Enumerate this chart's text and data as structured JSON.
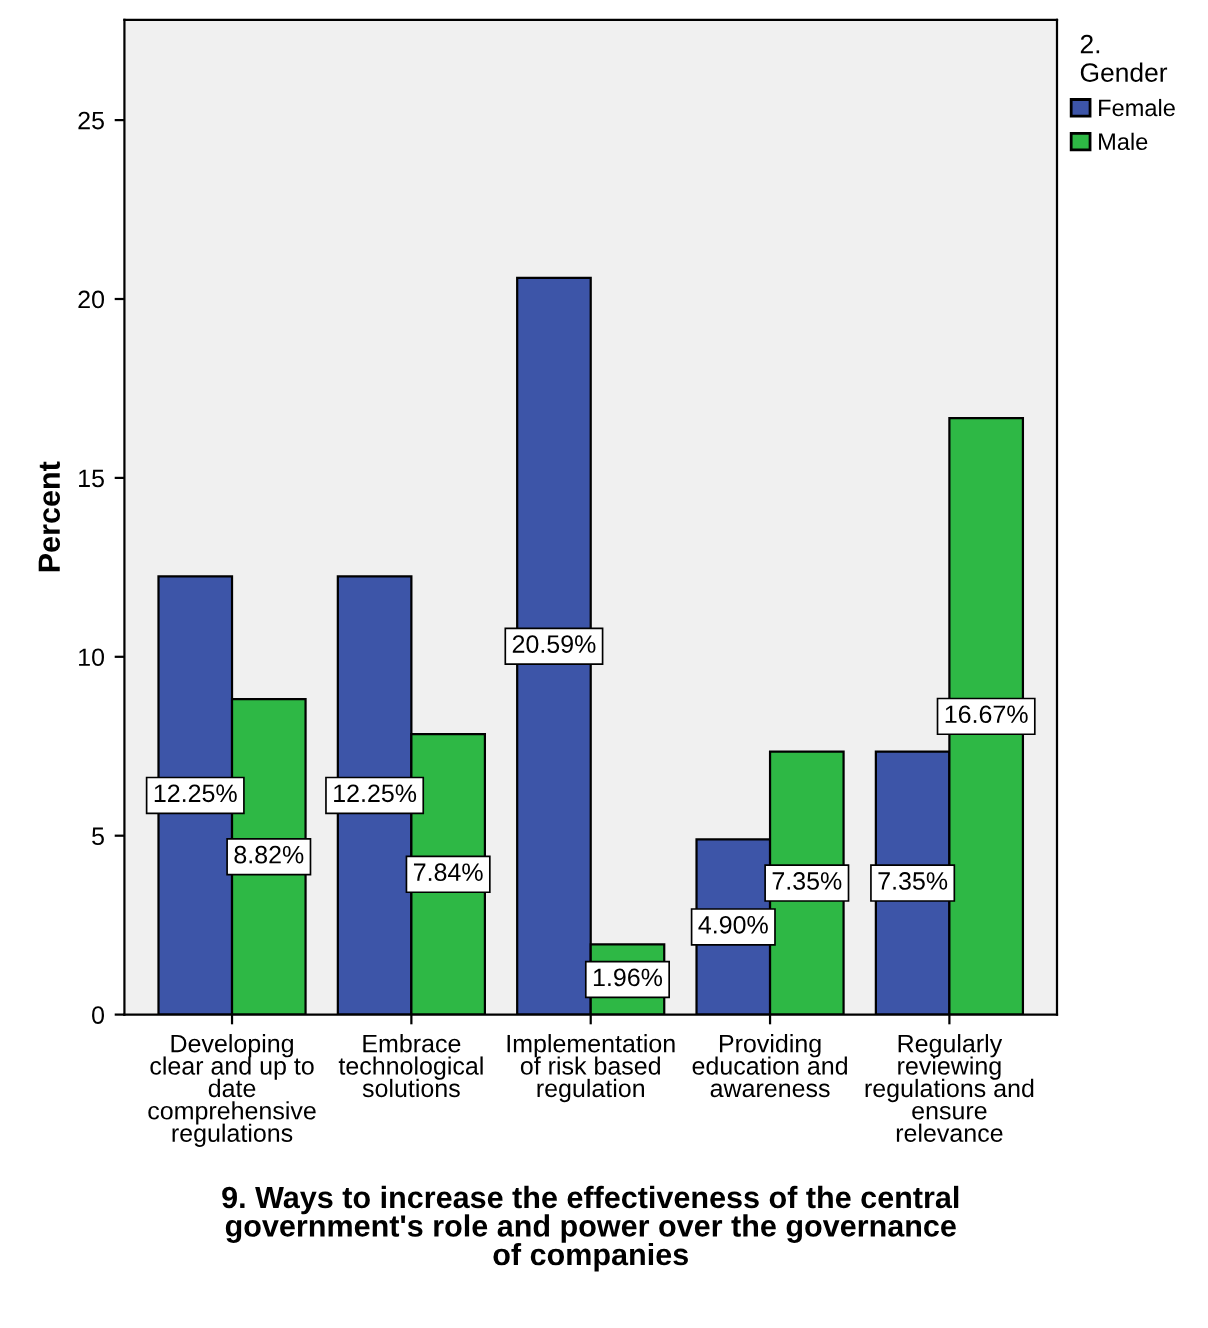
{
  "chart_data": {
    "type": "bar",
    "xlabel": "9. Ways to increase the effectiveness of the central\ngovernment's role and power over the governance\nof companies",
    "ylabel": "Percent",
    "legend_title": "2.\nGender",
    "legend": "top right",
    "categories": [
      "Developing\nclear and up to\ndate\ncomprehensive\nregulations",
      "Embrace\ntechnological\nsolutions",
      "Implementation\nof risk based\nregulation",
      "Providing\neducation and\nawareness",
      "Regularly\nreviewing\nregulations and\nensure\nrelevance"
    ],
    "series": [
      {
        "name": "Female",
        "color": "#3d55a8",
        "values": [
          12.25,
          12.25,
          20.59,
          4.9,
          7.35
        ],
        "value_labels": [
          "12.25%",
          "12.25%",
          "20.59%",
          "4.90%",
          "7.35%"
        ]
      },
      {
        "name": "Male",
        "color": "#2eb845",
        "values": [
          8.82,
          7.84,
          1.96,
          7.35,
          16.67
        ],
        "value_labels": [
          "8.82%",
          "7.84%",
          "1.96%",
          "7.35%",
          "16.67%"
        ]
      }
    ],
    "ylim": [
      0,
      27.8
    ],
    "yticks": [
      0,
      5,
      10,
      15,
      20,
      25
    ],
    "grid": false
  }
}
